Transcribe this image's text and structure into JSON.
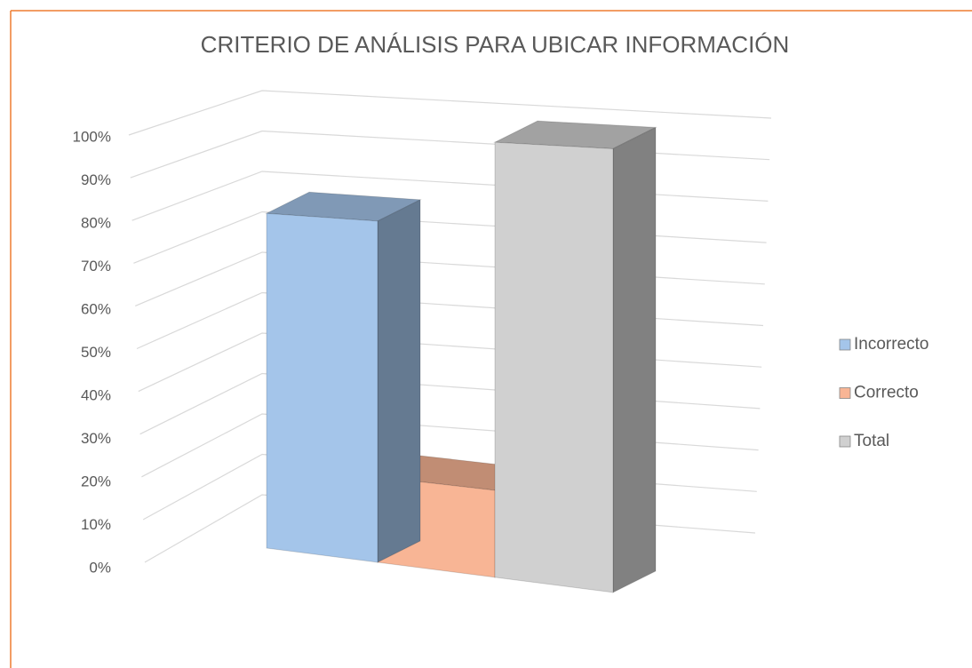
{
  "chart_data": {
    "type": "bar3d",
    "title": "CRITERIO DE ANÁLISIS PARA UBICAR INFORMACIÓN",
    "series": [
      {
        "name": "Incorrecto",
        "color": "#a4c5ea",
        "values": [
          80
        ]
      },
      {
        "name": "Correcto",
        "color": "#f8b595",
        "values": [
          20
        ]
      },
      {
        "name": "Total",
        "color": "#d0d0d0",
        "values": [
          100
        ]
      }
    ],
    "ylim": [
      0,
      100
    ],
    "yticks": [
      {
        "value": 0,
        "label": "0%"
      },
      {
        "value": 10,
        "label": "10%"
      },
      {
        "value": 20,
        "label": "20%"
      },
      {
        "value": 30,
        "label": "30%"
      },
      {
        "value": 40,
        "label": "40%"
      },
      {
        "value": 50,
        "label": "50%"
      },
      {
        "value": 60,
        "label": "60%"
      },
      {
        "value": 70,
        "label": "70%"
      },
      {
        "value": 80,
        "label": "80%"
      },
      {
        "value": 90,
        "label": "90%"
      },
      {
        "value": 100,
        "label": "100%"
      }
    ],
    "grid": true,
    "legend": "right"
  }
}
